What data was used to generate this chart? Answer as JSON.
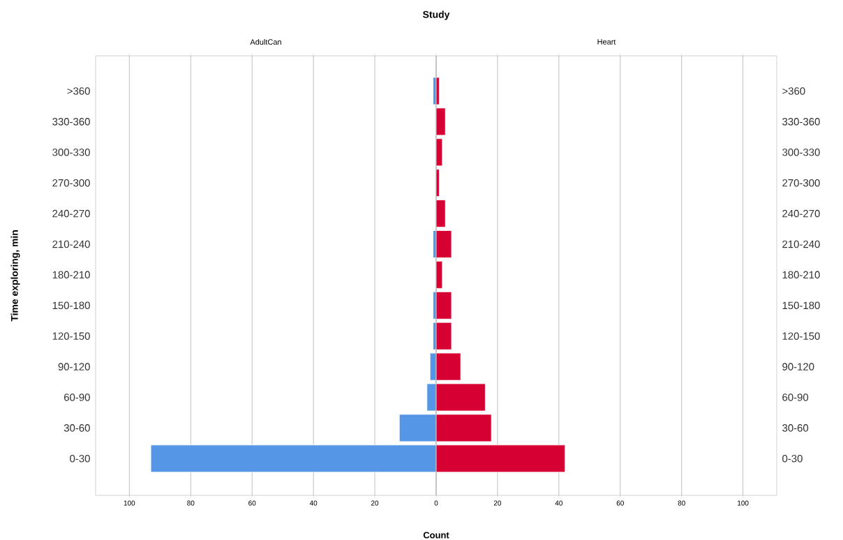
{
  "chart_data": [
    {
      "type": "bar",
      "orientation": "horizontal",
      "title": "Study",
      "subtitle": "AdultCan",
      "ylabel": "Time exploring, min",
      "categories": [
        ">360",
        "330-360",
        "300-330",
        "270-300",
        "240-270",
        "210-240",
        "180-210",
        "150-180",
        "120-150",
        "90-120",
        "60-90",
        "30-60",
        "0-30"
      ],
      "series": [
        {
          "color": "#5596e6",
          "values": [
            1,
            0,
            0,
            0,
            0,
            1,
            0,
            1,
            1,
            2,
            3,
            12,
            93
          ]
        }
      ],
      "xlim": [
        111,
        0
      ],
      "xticks": [
        100,
        80,
        60,
        40,
        20
      ],
      "grid": "x"
    },
    {
      "type": "bar",
      "orientation": "horizontal",
      "subtitle": "Heart",
      "xlabel": "Count",
      "categories": [
        ">360",
        "330-360",
        "300-330",
        "270-300",
        "240-270",
        "210-240",
        "180-210",
        "150-180",
        "120-150",
        "90-120",
        "60-90",
        "30-60",
        "0-30"
      ],
      "series": [
        {
          "color": "#d70033",
          "values": [
            1,
            3,
            2,
            1,
            3,
            5,
            2,
            5,
            5,
            8,
            16,
            18,
            42
          ]
        }
      ],
      "xlim": [
        0,
        111
      ],
      "xticks": [
        0,
        20,
        40,
        60,
        80,
        100
      ],
      "grid": "x"
    }
  ]
}
